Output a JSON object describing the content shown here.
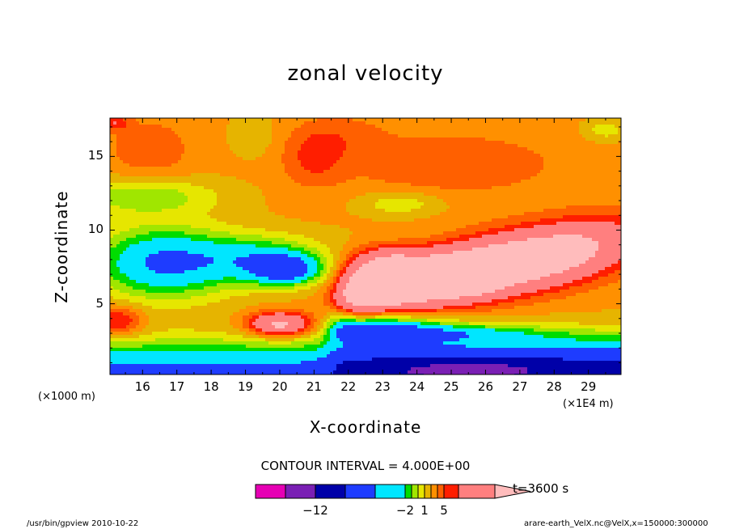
{
  "chart_data": {
    "type": "heatmap",
    "subtype": "filled-contour",
    "title": "zonal velocity",
    "xlabel": "X-coordinate",
    "ylabel": "Z-coordinate",
    "x_unit_label": "(×1000 m)",
    "x_unit_label_right": "(×1E4 m)",
    "x_ticks": [
      "16",
      "17",
      "18",
      "19",
      "20",
      "21",
      "22",
      "23",
      "24",
      "25",
      "26",
      "27",
      "28",
      "29"
    ],
    "y_ticks": [
      "5",
      "10",
      "15"
    ],
    "xlim": [
      15.05,
      29.95
    ],
    "ylim": [
      0.2,
      17.6
    ],
    "contour_interval_text": "CONTOUR INTERVAL = 4.000E+00",
    "colorbar": {
      "tick_labels": [
        "−12",
        "−2",
        "1",
        "5"
      ],
      "end_label": "t=3600 s",
      "colors": [
        "#e600b4",
        "#7a1fb4",
        "#0000a8",
        "#1e3cff",
        "#00e6ff",
        "#00dc00",
        "#a0e600",
        "#e6e600",
        "#e6b400",
        "#ff9000",
        "#ff6000",
        "#ff1e00",
        "#ff7f7f",
        "#ffbcbc"
      ]
    },
    "regions_description_values": {
      "max_positive_core": "pink core near x=22.5–23.5, z=6–9 and x=25–26, z=6–7",
      "negative_jet": "blue/purple layer z<4 for x>21.5"
    }
  },
  "footer": {
    "left": "/usr/bin/gpview   2010-10-22",
    "right": "arare-earth_VelX.nc@VelX,x=150000:300000"
  }
}
